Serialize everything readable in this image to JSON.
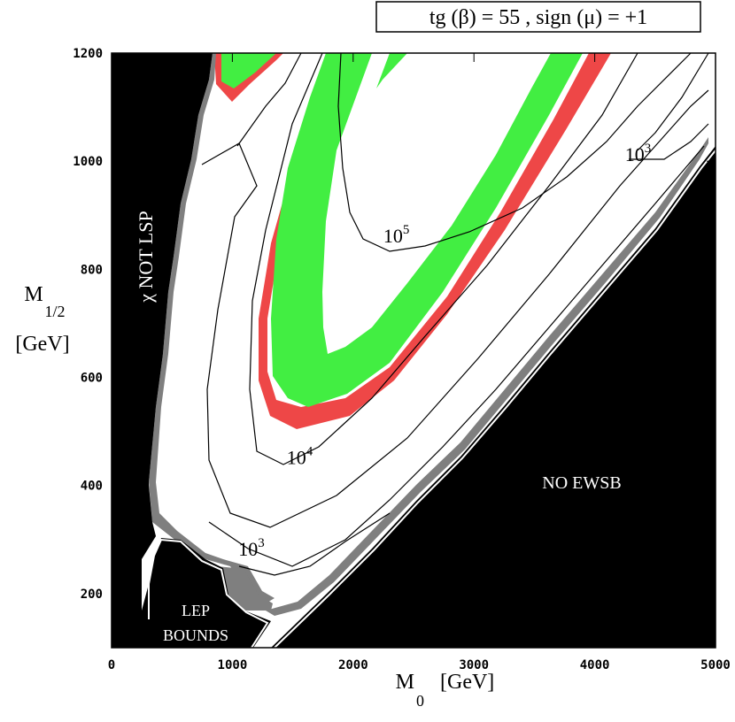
{
  "chart_data": {
    "type": "contour",
    "title": "tg (β) = 55 , sign (μ) = +1",
    "xlabel": "M",
    "xlabel_sub": "0",
    "xlabel_unit": "[GeV]",
    "ylabel": "M",
    "ylabel_sub": "1/2",
    "ylabel_unit": "[GeV]",
    "xlim": [
      0,
      5000
    ],
    "ylim": [
      100,
      1200
    ],
    "xticks": [
      0,
      1000,
      2000,
      3000,
      4000,
      5000
    ],
    "yticks": [
      200,
      400,
      600,
      800,
      1000,
      1200
    ],
    "regions": {
      "chi_not_lsp": {
        "label": "χ NOT LSP",
        "color": "#000000"
      },
      "no_ewsb": {
        "label": "NO EWSB",
        "color": "#000000"
      },
      "lep_bounds": {
        "label_line1": "LEP",
        "label_line2": "BOUNDS",
        "color": "#000000"
      },
      "excluded_gray": {
        "color": "#7f7f7f"
      },
      "allowed_green": {
        "color": "#42ee42"
      },
      "allowed_red": {
        "color": "#ee4747"
      }
    },
    "contour_labels": [
      {
        "base": "10",
        "exp": "3",
        "x": 4250,
        "y": 1000
      },
      {
        "base": "10",
        "exp": "5",
        "x": 2250,
        "y": 850
      },
      {
        "base": "10",
        "exp": "4",
        "x": 1450,
        "y": 440
      },
      {
        "base": "10",
        "exp": "3",
        "x": 1050,
        "y": 270
      }
    ]
  }
}
